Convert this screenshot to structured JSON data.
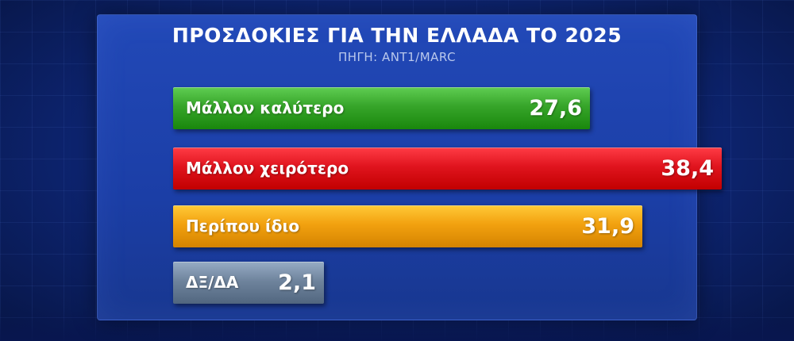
{
  "chart_data": {
    "type": "bar",
    "orientation": "horizontal",
    "title": "ΠΡΟΣΔΟΚΙΕΣ ΓΙΑ ΤΗΝ ΕΛΛΑΔΑ ΤΟ 2025",
    "subtitle": "ΠΗΓΗ: ANT1/MARC",
    "categories": [
      "Μάλλον καλύτερο",
      "Μάλλον χειρότερο",
      "Περίπου ίδιο",
      "ΔΞ/ΔΑ"
    ],
    "values": [
      27.6,
      38.4,
      31.9,
      2.1
    ],
    "value_labels": [
      "27,6",
      "38,4",
      "31,9",
      "2,1"
    ],
    "colors": [
      "#37a52a",
      "#e0141e",
      "#f2a10f",
      "#6f849d"
    ],
    "xlim": [
      0,
      40
    ],
    "grid": false,
    "legend": "none"
  }
}
